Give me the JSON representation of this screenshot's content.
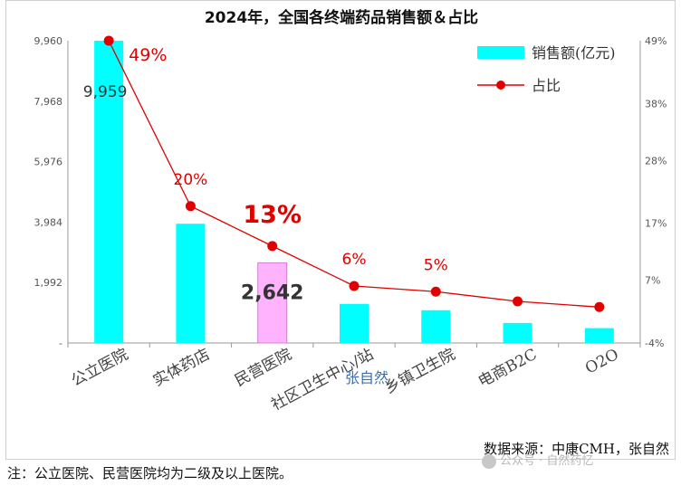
{
  "chart_data": {
    "type": "bar",
    "title": "2024年，全国各终端药品销售额＆占比",
    "categories": [
      "公立医院",
      "实体药店",
      "民营医院",
      "社区卫生中心/站",
      "乡镇卫生院",
      "电商B2C",
      "O2O"
    ],
    "series": [
      {
        "name": "销售额(亿元)",
        "type": "bar",
        "axis": "left",
        "values": [
          9959,
          3930,
          2642,
          1290,
          1080,
          660,
          490
        ]
      },
      {
        "name": "占比",
        "type": "line",
        "axis": "right",
        "values": [
          49,
          20,
          13,
          6,
          5,
          3.3,
          2.3
        ]
      }
    ],
    "highlight_category": "民营医院",
    "left_axis": {
      "ticks": [
        0,
        1992,
        3984,
        5976,
        7968,
        9960
      ],
      "tick_labels": [
        "-",
        "1,992",
        "3,984",
        "5,976",
        "7,968",
        "9,960"
      ],
      "ylim": [
        0,
        9960
      ]
    },
    "right_axis": {
      "ticks": [
        -4,
        7,
        17,
        28,
        38,
        49
      ],
      "tick_labels": [
        "-4%",
        "7%",
        "17%",
        "28%",
        "38%",
        "49%"
      ],
      "ylim": [
        -4,
        49
      ]
    },
    "data_labels": [
      {
        "text": "9,959",
        "category": "公立医院",
        "series": "销售额(亿元)",
        "style": "plain"
      },
      {
        "text": "2,642",
        "category": "民营医院",
        "series": "销售额(亿元)",
        "style": "bold"
      },
      {
        "text": "49%",
        "category": "公立医院",
        "series": "占比",
        "style": "red"
      },
      {
        "text": "20%",
        "category": "实体药店",
        "series": "占比",
        "style": "red"
      },
      {
        "text": "13%",
        "category": "民营医院",
        "series": "占比",
        "style": "red-big"
      },
      {
        "text": "6%",
        "category": "社区卫生中心/站",
        "series": "占比",
        "style": "red"
      },
      {
        "text": "5%",
        "category": "乡镇卫生院",
        "series": "占比",
        "style": "red"
      }
    ],
    "legend": {
      "position": "top-right"
    }
  },
  "colors": {
    "bar": "#00ffff",
    "highlight_bar": "#ffb3ff",
    "highlight_border": "#d080d0",
    "line": "#e00000",
    "label_red": "#e00000",
    "axis_text": "#555555",
    "label_dark": "#333333"
  },
  "source_note": "数据来源：中康CMH，张自然",
  "overlay_text": "张自然",
  "footnote": "注：公立医院、民营医院均为二级及以上医院。",
  "watermark": "公众号 · 自然药忆"
}
